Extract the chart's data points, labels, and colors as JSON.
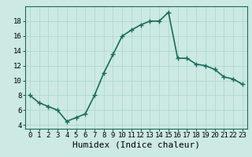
{
  "x": [
    0,
    1,
    2,
    3,
    4,
    5,
    6,
    7,
    8,
    9,
    10,
    11,
    12,
    13,
    14,
    15,
    16,
    17,
    18,
    19,
    20,
    21,
    22,
    23
  ],
  "y": [
    8.0,
    7.0,
    6.5,
    6.0,
    4.5,
    5.0,
    5.5,
    8.0,
    11.0,
    13.5,
    16.0,
    16.8,
    17.5,
    18.0,
    18.0,
    19.2,
    13.0,
    13.0,
    12.2,
    12.0,
    11.5,
    10.5,
    10.2,
    9.5
  ],
  "xlim": [
    -0.5,
    23.5
  ],
  "ylim": [
    3.5,
    20.0
  ],
  "yticks": [
    4,
    6,
    8,
    10,
    12,
    14,
    16,
    18
  ],
  "xticks": [
    0,
    1,
    2,
    3,
    4,
    5,
    6,
    7,
    8,
    9,
    10,
    11,
    12,
    13,
    14,
    15,
    16,
    17,
    18,
    19,
    20,
    21,
    22,
    23
  ],
  "xlabel": "Humidex (Indice chaleur)",
  "line_color": "#1a6b5a",
  "marker": "+",
  "marker_size": 4,
  "bg_color": "#cce9e4",
  "grid_color": "#b0d8d2",
  "line_width": 1.2,
  "xlabel_fontsize": 8,
  "tick_fontsize": 6.5
}
